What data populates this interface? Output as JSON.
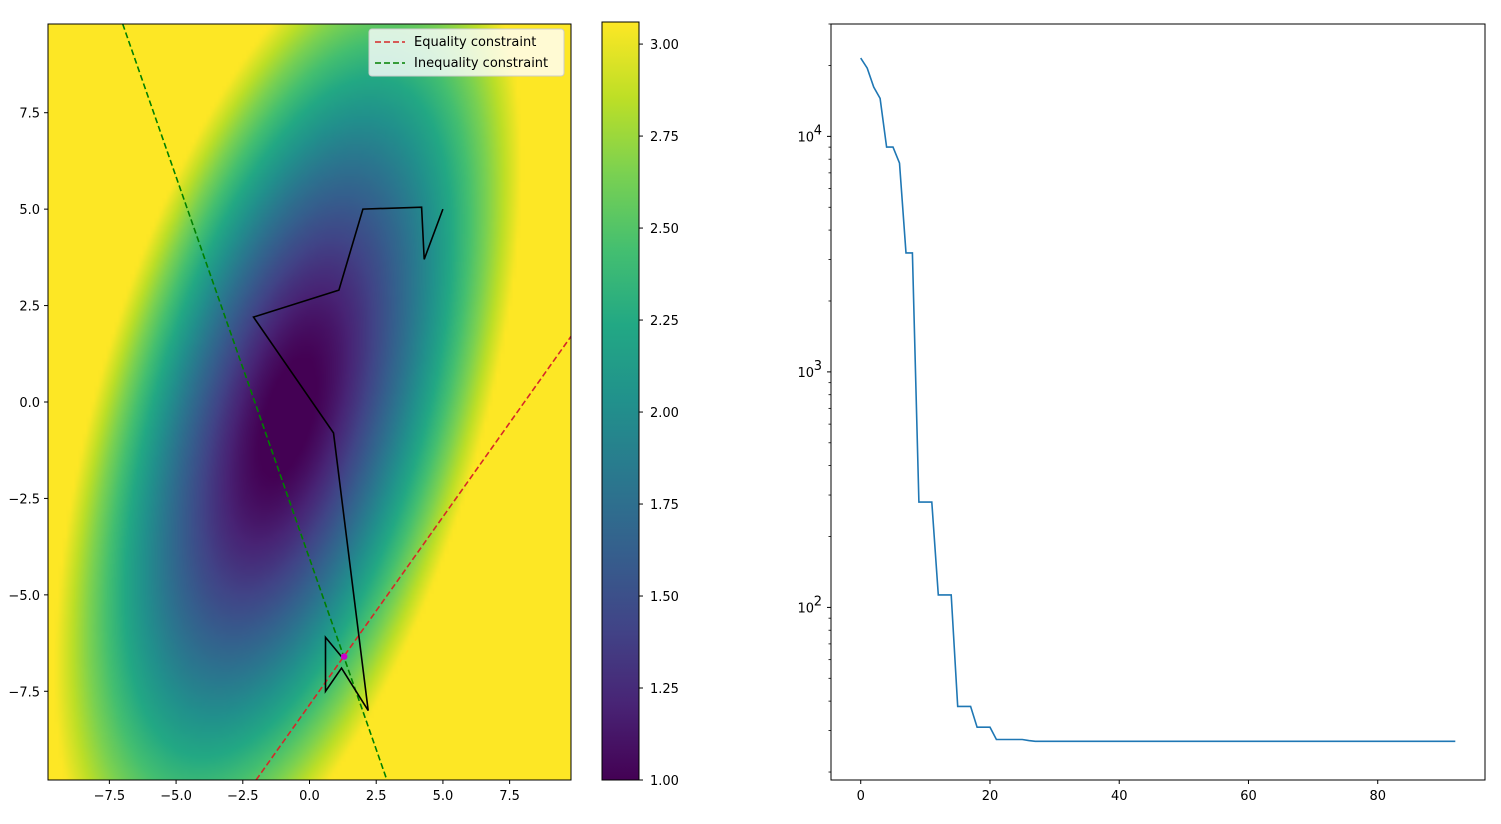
{
  "chart_data": [
    {
      "type": "heatmap",
      "title": "",
      "xlabel": "",
      "ylabel": "",
      "xlim": [
        -9.8,
        9.8
      ],
      "ylim": [
        -9.8,
        9.8
      ],
      "xticks": [
        -7.5,
        -5.0,
        -2.5,
        0.0,
        2.5,
        5.0,
        7.5
      ],
      "xtick_labels": [
        "−7.5",
        "−5.0",
        "−2.5",
        "0.0",
        "2.5",
        "5.0",
        "7.5"
      ],
      "yticks": [
        -7.5,
        -5.0,
        -2.5,
        0.0,
        2.5,
        5.0,
        7.5
      ],
      "ytick_labels": [
        "−7.5",
        "−5.0",
        "−2.5",
        "0.0",
        "2.5",
        "5.0",
        "7.5"
      ],
      "colormap": "viridis",
      "colorbar": {
        "range": [
          1.0,
          3.06
        ],
        "ticks": [
          1.0,
          1.25,
          1.5,
          1.75,
          2.0,
          2.25,
          2.5,
          2.75,
          3.0
        ],
        "tick_labels": [
          "1.00",
          "1.25",
          "1.50",
          "1.75",
          "2.00",
          "2.25",
          "2.50",
          "2.75",
          "3.00"
        ]
      },
      "legend": {
        "placement": "upper right",
        "entries": [
          {
            "label": "Equality constraint",
            "color": "#d62728",
            "style": "dashed"
          },
          {
            "label": "Inequality constraint",
            "color": "#008000",
            "style": "dashed"
          }
        ]
      },
      "series": [
        {
          "kind": "equality-line",
          "color": "#d62728",
          "x": [
            -2.0,
            9.8
          ],
          "y": [
            -9.8,
            1.7
          ]
        },
        {
          "kind": "inequality-line",
          "color": "#008000",
          "x": [
            -7.0,
            2.9
          ],
          "y": [
            9.8,
            -9.8
          ]
        },
        {
          "kind": "path",
          "color": "#000000",
          "x": [
            5.0,
            4.3,
            4.2,
            2.0,
            1.1,
            -2.1,
            0.9,
            2.2,
            1.2,
            0.6,
            0.6,
            1.2
          ],
          "y": [
            5.0,
            3.7,
            5.05,
            5.0,
            2.9,
            2.2,
            -0.8,
            -8.0,
            -6.9,
            -7.5,
            -6.1,
            -6.6
          ]
        },
        {
          "kind": "optimum-marker",
          "color": "#cc00cc",
          "x": [
            1.3
          ],
          "y": [
            -6.6
          ]
        }
      ]
    },
    {
      "type": "line",
      "title": "",
      "xlabel": "",
      "ylabel": "",
      "yscale": "log",
      "xlim": [
        -4.6,
        96.6
      ],
      "ylim": [
        18.5,
        30000
      ],
      "xticks": [
        0,
        20,
        40,
        60,
        80
      ],
      "xtick_labels": [
        "0",
        "20",
        "40",
        "60",
        "80"
      ],
      "yticks": [
        100,
        1000,
        10000
      ],
      "ytick_labels": [
        {
          "base": "10",
          "exp": "2"
        },
        {
          "base": "10",
          "exp": "3"
        },
        {
          "base": "10",
          "exp": "4"
        }
      ],
      "series": [
        {
          "color": "#1f77b4",
          "x": [
            0,
            1,
            2,
            3,
            4,
            5,
            6,
            7,
            8,
            9,
            10,
            11,
            12,
            13,
            14,
            15,
            16,
            17,
            18,
            19,
            20,
            21,
            22,
            23,
            24,
            25,
            26,
            27,
            28,
            29,
            30,
            40,
            50,
            60,
            70,
            80,
            92
          ],
          "y": [
            21500,
            19500,
            16200,
            14500,
            9000,
            9000,
            7700,
            3200,
            3200,
            280,
            280,
            280,
            113,
            113,
            113,
            38,
            38,
            38,
            31,
            31,
            31,
            27.5,
            27.5,
            27.5,
            27.5,
            27.5,
            27.2,
            27.0,
            27.0,
            27.0,
            27.0,
            27.0,
            27.0,
            27.0,
            27.0,
            27.0,
            27.0
          ]
        }
      ]
    }
  ]
}
